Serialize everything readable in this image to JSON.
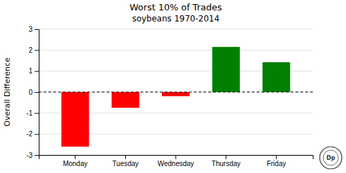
{
  "chart_data": {
    "type": "bar",
    "title": "Worst 10% of Trades",
    "subtitle": "soybeans 1970-2014",
    "y_label": "Overall Difference",
    "categories": [
      "Monday",
      "Tuesday",
      "Wednesday",
      "Thursday",
      "Friday"
    ],
    "values": [
      -2.6,
      -0.75,
      -0.2,
      2.15,
      1.42
    ],
    "colors": [
      "#ff0000",
      "#ff0000",
      "#ff0000",
      "#008000",
      "#008000"
    ],
    "ylim": [
      -3,
      3
    ],
    "yticks": [
      -3,
      -2,
      -1,
      0,
      1,
      2,
      3
    ],
    "grid": true,
    "annotation": "Dp"
  }
}
